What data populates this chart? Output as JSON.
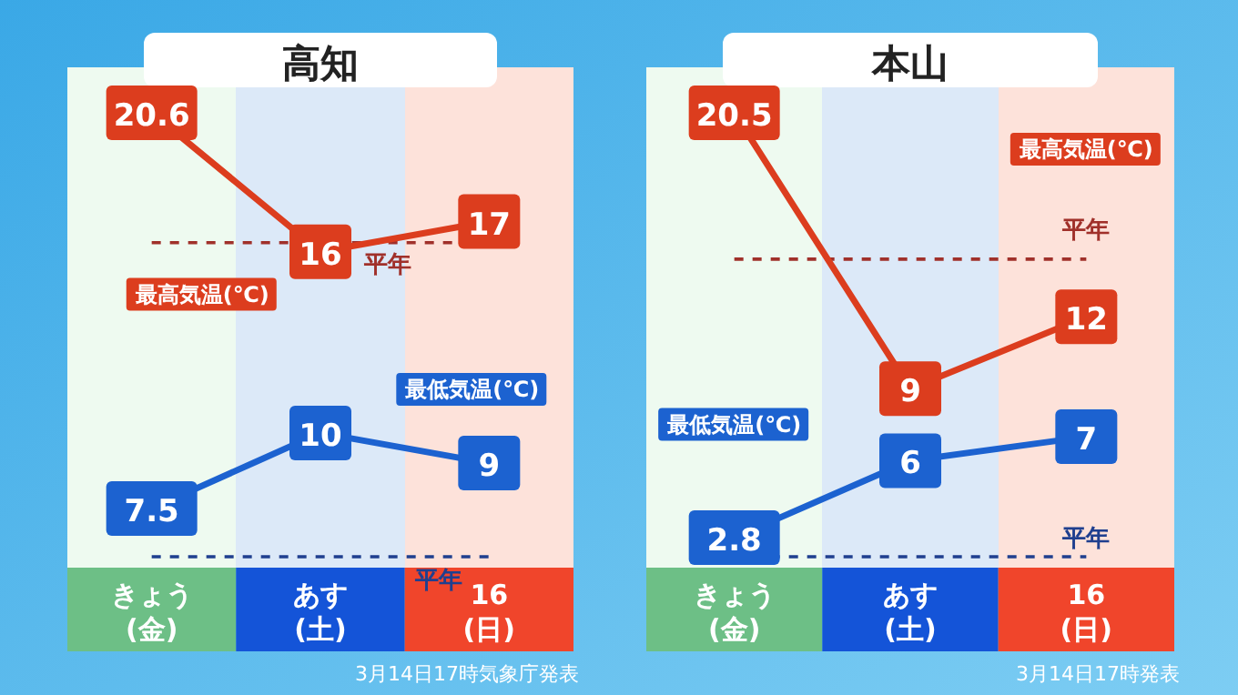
{
  "chart_data": [
    {
      "type": "line",
      "title": "高知",
      "categories": [
        "きょう\n(金)",
        "あす\n(土)",
        "16\n(日)"
      ],
      "series": [
        {
          "name": "最高気温(℃)",
          "color": "#dc3d1e",
          "values": [
            20.6,
            16,
            17
          ]
        },
        {
          "name": "最低気温(℃)",
          "color": "#1c62d0",
          "values": [
            7.5,
            10,
            9
          ]
        }
      ],
      "tick_labels": "x",
      "data_labels": true,
      "marker": "square",
      "legend": false,
      "ref_lines": [
        {
          "axis": "y",
          "value": 16.3,
          "label": "平年",
          "color": "#a0302a",
          "line_style": "dashed"
        },
        {
          "axis": "y",
          "value": 5.9,
          "label": "平年",
          "color": "#1f3f8f",
          "line_style": "dashed"
        }
      ],
      "annotations": [
        "3月14日17時気象庁発表"
      ]
    },
    {
      "type": "line",
      "title": "本山",
      "categories": [
        "きょう\n(金)",
        "あす\n(土)",
        "16\n(日)"
      ],
      "series": [
        {
          "name": "最高気温(℃)",
          "color": "#dc3d1e",
          "values": [
            20.5,
            9,
            12
          ]
        },
        {
          "name": "最低気温(℃)",
          "color": "#1c62d0",
          "values": [
            2.8,
            6,
            7
          ]
        }
      ],
      "tick_labels": "x",
      "data_labels": true,
      "marker": "square",
      "legend": false,
      "ref_lines": [
        {
          "axis": "y",
          "value": 14.4,
          "label": "平年",
          "color": "#a0302a",
          "line_style": "dashed"
        },
        {
          "axis": "y",
          "value": 2.0,
          "label": "平年",
          "color": "#1f3f8f",
          "line_style": "dashed"
        }
      ],
      "annotations": [
        "3月14日17時発表"
      ]
    }
  ]
}
